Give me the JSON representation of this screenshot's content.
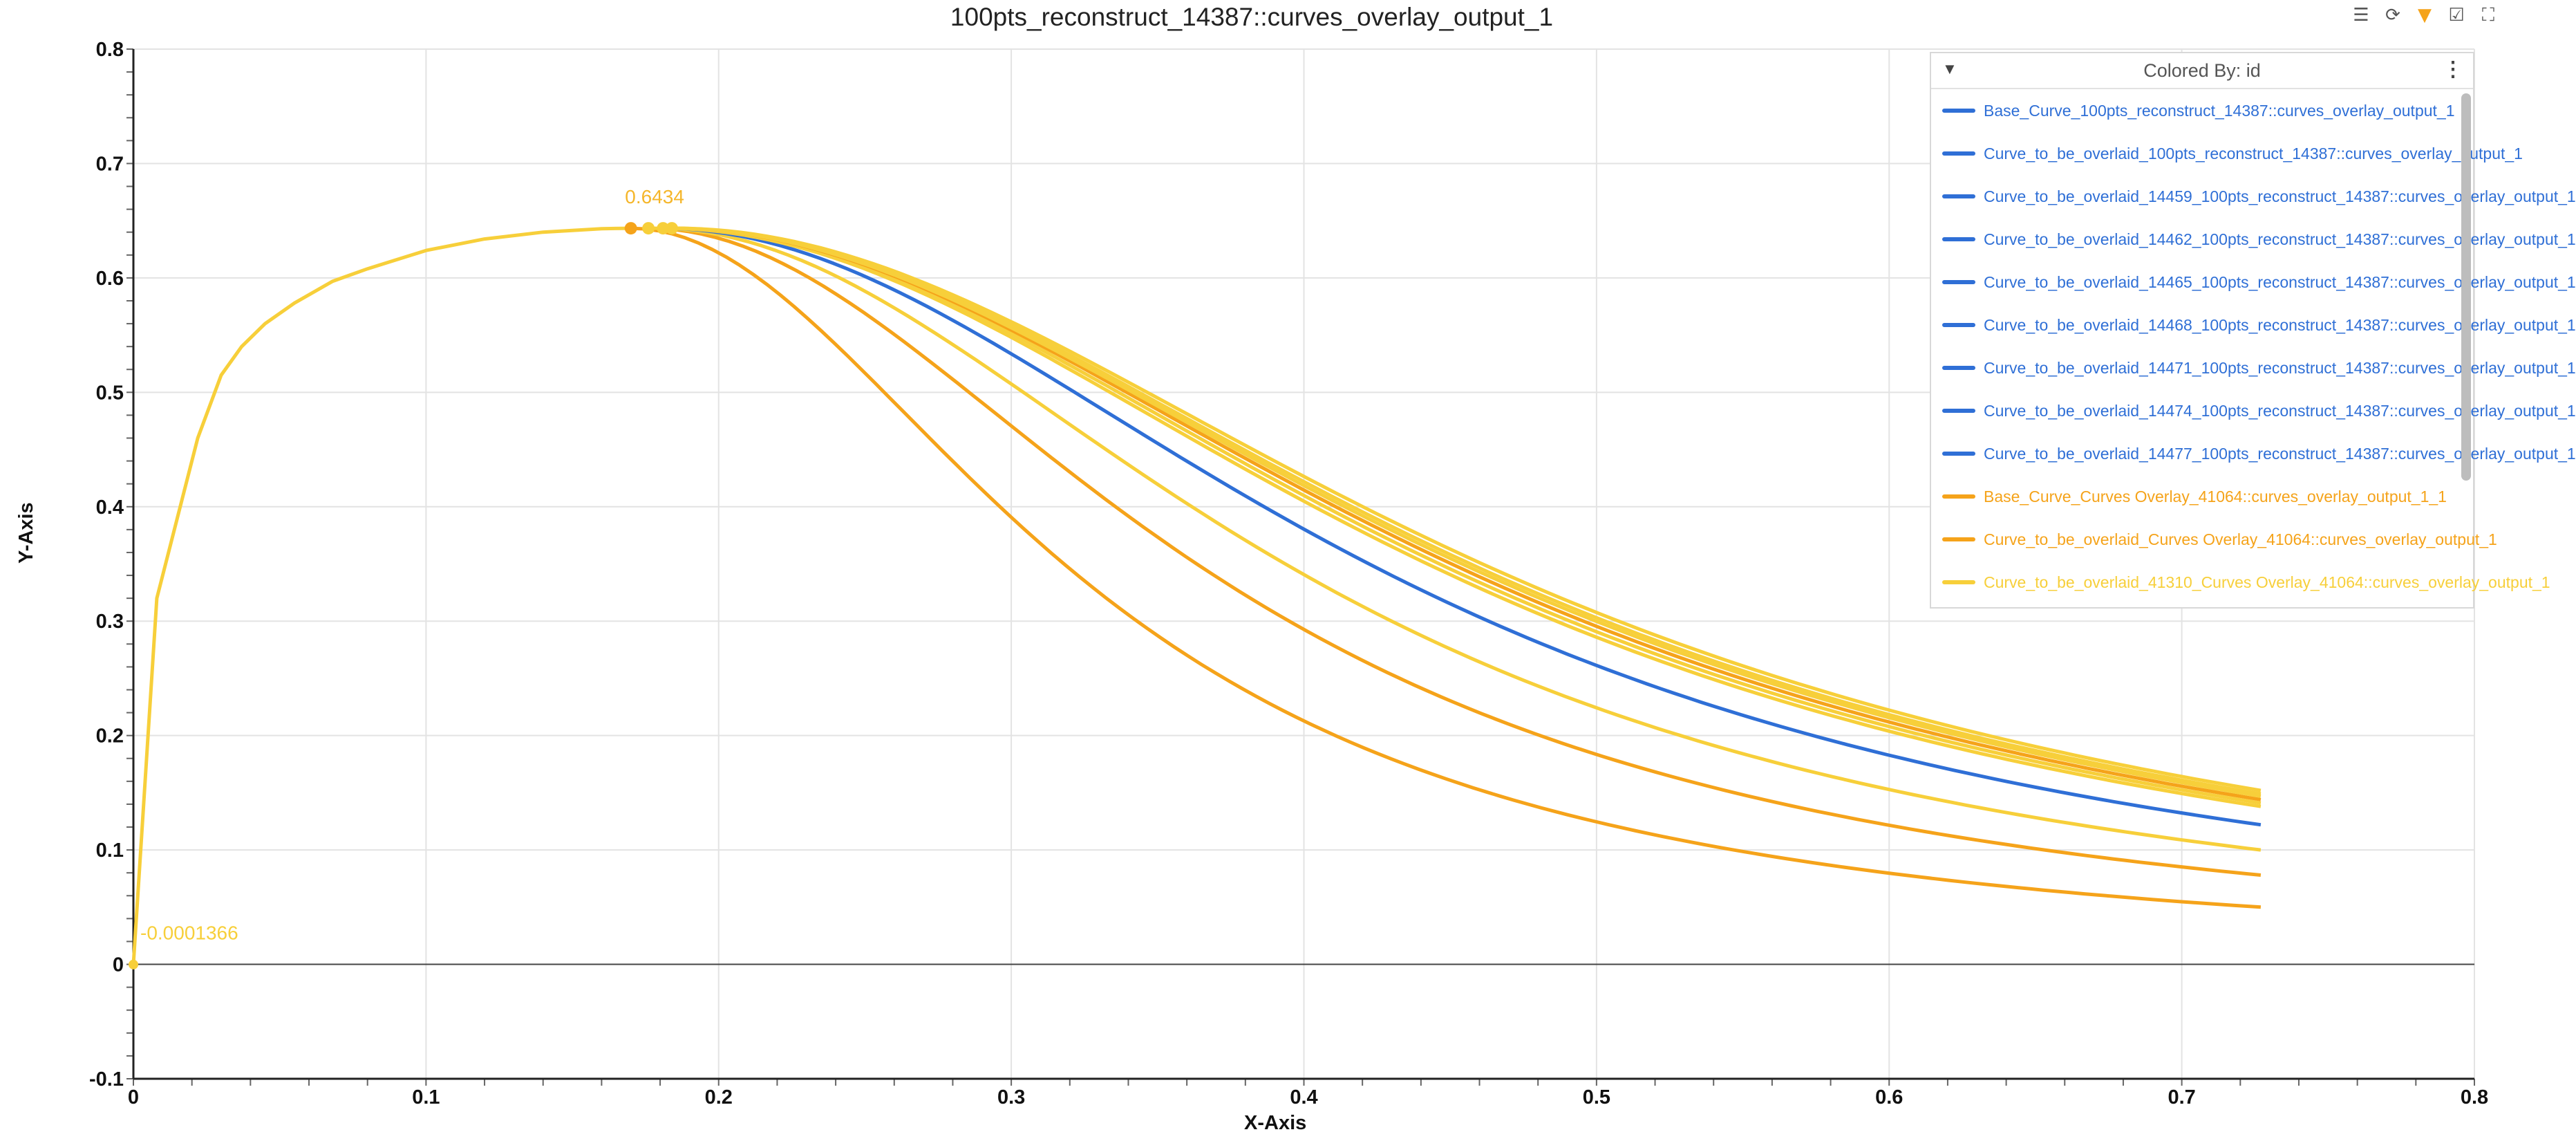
{
  "window": {
    "title": "100pts_reconstruct_14387::curves_overlay_output_1",
    "toolbar_icons": [
      "settings-sliders-icon",
      "refresh-icon",
      "filter-icon",
      "checkbox-icon",
      "fullscreen-icon"
    ]
  },
  "legend": {
    "header": "Colored By: id",
    "items": [
      {
        "label": "Base_Curve_100pts_reconstruct_14387::curves_overlay_output_1",
        "color": "#2f6fd6"
      },
      {
        "label": "Curve_to_be_overlaid_100pts_reconstruct_14387::curves_overlay_output_1",
        "color": "#2f6fd6"
      },
      {
        "label": "Curve_to_be_overlaid_14459_100pts_reconstruct_14387::curves_overlay_output_1",
        "color": "#2f6fd6"
      },
      {
        "label": "Curve_to_be_overlaid_14462_100pts_reconstruct_14387::curves_overlay_output_1",
        "color": "#2f6fd6"
      },
      {
        "label": "Curve_to_be_overlaid_14465_100pts_reconstruct_14387::curves_overlay_output_1",
        "color": "#2f6fd6"
      },
      {
        "label": "Curve_to_be_overlaid_14468_100pts_reconstruct_14387::curves_overlay_output_1",
        "color": "#2f6fd6"
      },
      {
        "label": "Curve_to_be_overlaid_14471_100pts_reconstruct_14387::curves_overlay_output_1",
        "color": "#2f6fd6"
      },
      {
        "label": "Curve_to_be_overlaid_14474_100pts_reconstruct_14387::curves_overlay_output_1",
        "color": "#2f6fd6"
      },
      {
        "label": "Curve_to_be_overlaid_14477_100pts_reconstruct_14387::curves_overlay_output_1",
        "color": "#2f6fd6"
      },
      {
        "label": "Base_Curve_Curves Overlay_41064::curves_overlay_output_1_1",
        "color": "#f5a31a"
      },
      {
        "label": "Curve_to_be_overlaid_Curves Overlay_41064::curves_overlay_output_1",
        "color": "#f5a31a"
      },
      {
        "label": "Curve_to_be_overlaid_41310_Curves Overlay_41064::curves_overlay_output_1",
        "color": "#f7cf3a"
      }
    ]
  },
  "annotations": {
    "peak_label": "0.6434",
    "origin_label": "-0.0001366"
  },
  "chart_data": {
    "type": "line",
    "title": "100pts_reconstruct_14387::curves_overlay_output_1",
    "xlabel": "X-Axis",
    "ylabel": "Y-Axis",
    "xlim": [
      0,
      0.8
    ],
    "ylim": [
      -0.1,
      0.8
    ],
    "x_ticks": [
      "0",
      "0.1",
      "0.2",
      "0.3",
      "0.4",
      "0.5",
      "0.6",
      "0.7",
      "0.8"
    ],
    "y_ticks": [
      "-0.1",
      "0",
      "0.1",
      "0.2",
      "0.3",
      "0.4",
      "0.5",
      "0.6",
      "0.7",
      "0.8"
    ],
    "grid": true,
    "legend_position": "top-right",
    "rising_segment": {
      "x": [
        0,
        0.008,
        0.015,
        0.022,
        0.03,
        0.037,
        0.045,
        0.055,
        0.068,
        0.08,
        0.1,
        0.12,
        0.14,
        0.16,
        0.17
      ],
      "y": [
        0,
        0.32,
        0.39,
        0.46,
        0.515,
        0.54,
        0.56,
        0.578,
        0.597,
        0.608,
        0.624,
        0.634,
        0.64,
        0.643,
        0.6434
      ]
    },
    "series": [
      {
        "color": "#f7cf3a",
        "peak_x": 0.185,
        "end_y": 0.152
      },
      {
        "color": "#f7cf3a",
        "peak_x": 0.184,
        "end_y": 0.149
      },
      {
        "color": "#f7cf3a",
        "peak_x": 0.183,
        "end_y": 0.147
      },
      {
        "color": "#f5a31a",
        "peak_x": 0.183,
        "end_y": 0.144
      },
      {
        "color": "#f7cf3a",
        "peak_x": 0.182,
        "end_y": 0.141
      },
      {
        "color": "#f7cf3a",
        "peak_x": 0.181,
        "end_y": 0.138
      },
      {
        "color": "#2f6fd6",
        "peak_x": 0.18,
        "end_y": 0.122
      },
      {
        "color": "#f7cf3a",
        "peak_x": 0.178,
        "end_y": 0.1
      },
      {
        "color": "#f5a31a",
        "peak_x": 0.176,
        "end_y": 0.078
      },
      {
        "color": "#f5a31a",
        "peak_x": 0.17,
        "end_y": 0.05
      }
    ],
    "peak_points": [
      {
        "x": 0.17,
        "y": 0.6434,
        "color": "#f5a31a"
      },
      {
        "x": 0.176,
        "y": 0.6434,
        "color": "#f7cf3a"
      },
      {
        "x": 0.181,
        "y": 0.6434,
        "color": "#f7cf3a"
      },
      {
        "x": 0.184,
        "y": 0.6434,
        "color": "#f7cf3a"
      }
    ],
    "origin_point": {
      "x": 0,
      "y": -0.0001366,
      "color": "#f7cf3a"
    },
    "curve_end_x": 0.727
  }
}
